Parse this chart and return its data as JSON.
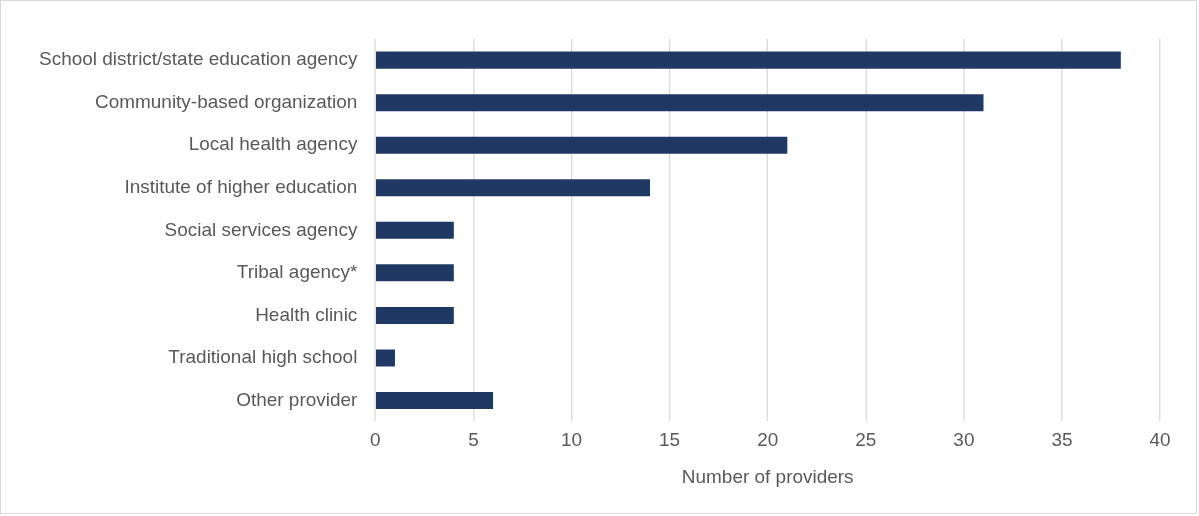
{
  "chart_data": {
    "type": "bar",
    "orientation": "horizontal",
    "xlabel": "Number of providers",
    "categories": [
      "School district/state education agency",
      "Community-based organization",
      "Local health agency",
      "Institute of higher education",
      "Social services agency",
      "Tribal agency*",
      "Health clinic",
      "Traditional high school",
      "Other provider"
    ],
    "values": [
      38,
      31,
      21,
      14,
      4,
      4,
      4,
      1,
      6
    ],
    "color": "#203864",
    "xlim": [
      0,
      40
    ],
    "xticks": [
      0,
      5,
      10,
      15,
      20,
      25,
      30,
      35,
      40
    ],
    "grid": "x",
    "legend": false
  }
}
